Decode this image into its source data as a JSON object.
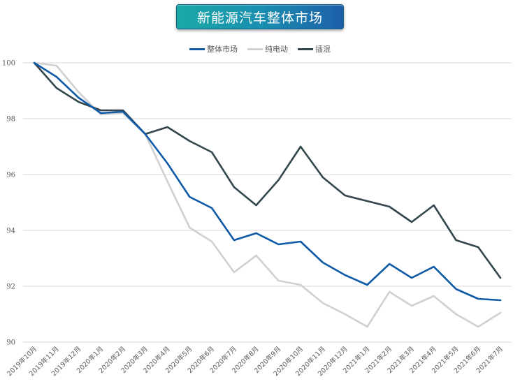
{
  "title": "新能源汽车整体市场",
  "legend": [
    {
      "label": "整体市场",
      "color": "#0e5aa7"
    },
    {
      "label": "纯电动",
      "color": "#d0d0d0"
    },
    {
      "label": "插混",
      "color": "#34464d"
    }
  ],
  "chart_data": {
    "type": "line",
    "title": "新能源汽车整体市场",
    "xlabel": "",
    "ylabel": "",
    "ylim": [
      90,
      100
    ],
    "yticks": [
      90,
      92,
      94,
      96,
      98,
      100
    ],
    "grid": true,
    "legend_position": "top",
    "categories": [
      "2019年10月",
      "2019年11月",
      "2019年12月",
      "2020年1月",
      "2020年2月",
      "2020年3月",
      "2020年4月",
      "2020年5月",
      "2020年6月",
      "2020年7月",
      "2020年8月",
      "2020年9月",
      "2020年10月",
      "2020年11月",
      "2020年12月",
      "2021年1月",
      "2021年2月",
      "2021年3月",
      "2021年4月",
      "2021年5月",
      "2021年6月",
      "2021年7月"
    ],
    "series": [
      {
        "name": "整体市场",
        "color": "#0e5aa7",
        "values": [
          100,
          99.5,
          98.75,
          98.2,
          98.25,
          97.45,
          96.4,
          95.2,
          94.8,
          93.65,
          93.9,
          93.5,
          93.6,
          92.85,
          92.4,
          92.05,
          92.8,
          92.3,
          92.7,
          91.9,
          91.55,
          91.5
        ]
      },
      {
        "name": "纯电动",
        "color": "#d0d0d0",
        "values": [
          100,
          99.9,
          98.95,
          98.15,
          98.2,
          97.45,
          95.75,
          94.1,
          93.6,
          92.5,
          93.1,
          92.2,
          92.05,
          91.4,
          91.0,
          90.55,
          91.8,
          91.3,
          91.65,
          91.0,
          90.55,
          91.05
        ]
      },
      {
        "name": "插混",
        "color": "#34464d",
        "values": [
          100,
          99.1,
          98.6,
          98.3,
          98.3,
          97.45,
          97.7,
          97.2,
          96.8,
          95.55,
          94.9,
          95.8,
          97.0,
          95.9,
          95.25,
          95.05,
          94.85,
          94.3,
          94.9,
          93.65,
          93.4,
          92.3
        ]
      }
    ]
  }
}
